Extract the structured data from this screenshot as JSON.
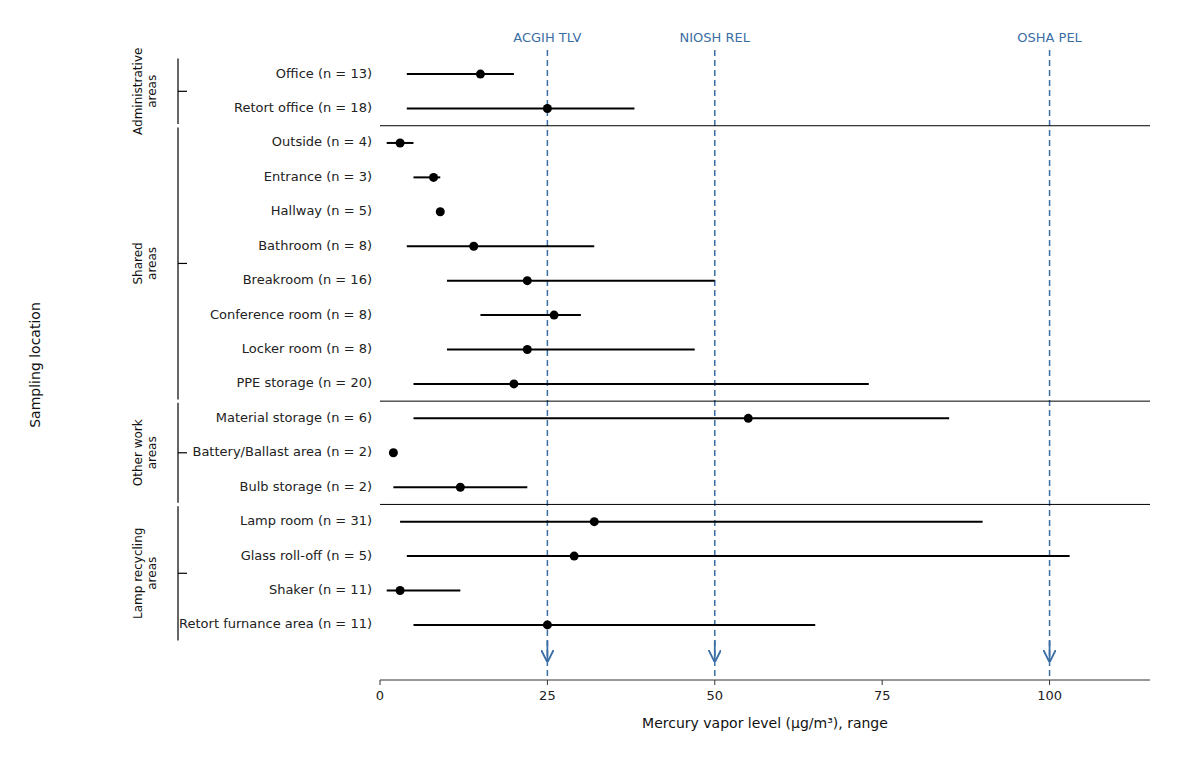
{
  "chart_data": {
    "type": "range",
    "categories": [
      "Office (n = 13)",
      "Retort office (n = 18)",
      "Outside (n = 4)",
      "Entrance (n = 3)",
      "Hallway (n = 5)",
      "Bathroom (n = 8)",
      "Breakroom (n = 16)",
      "Conference room (n = 8)",
      "Locker room (n = 8)",
      "PPE storage (n = 20)",
      "Material storage (n = 6)",
      "Battery/Ballast area (n = 2)",
      "Bulb storage (n = 2)",
      "Lamp room (n = 31)",
      "Glass roll-off (n = 5)",
      "Shaker (n = 11)",
      "Retort furnance area (n = 11)"
    ],
    "values": [
      15,
      25,
      3,
      8,
      9,
      14,
      22,
      26,
      22,
      20,
      55,
      2,
      12,
      32,
      29,
      3,
      25
    ],
    "range_low": [
      4,
      4,
      1,
      5,
      9,
      4,
      10,
      15,
      10,
      5,
      5,
      2,
      2,
      3,
      4,
      1,
      5
    ],
    "range_high": [
      20,
      38,
      5,
      9,
      9,
      32,
      50,
      30,
      47,
      73,
      85,
      2,
      22,
      90,
      103,
      12,
      65
    ],
    "color": "black",
    "groups": [
      {
        "label": "Administrative\nareas",
        "first": 0,
        "last": 1
      },
      {
        "label": "Shared\nareas",
        "first": 2,
        "last": 9
      },
      {
        "label": "Other work\nareas",
        "first": 10,
        "last": 12
      },
      {
        "label": "Lamp recycling\nareas",
        "first": 13,
        "last": 16
      }
    ],
    "reference_lines": [
      {
        "x": 25,
        "label": "ACGIH TLV",
        "color": "#3B6EA5"
      },
      {
        "x": 50,
        "label": "NIOSH REL",
        "color": "#3B6EA5"
      },
      {
        "x": 100,
        "label": "OSHA PEL",
        "color": "#3B6EA5"
      }
    ],
    "xlabel": "Mercury vapor level (μg/m³), range",
    "ylabel": "Sampling location",
    "xlim": [
      0,
      115
    ],
    "xticks": [
      0,
      25,
      50,
      75,
      100
    ],
    "grid": false
  }
}
